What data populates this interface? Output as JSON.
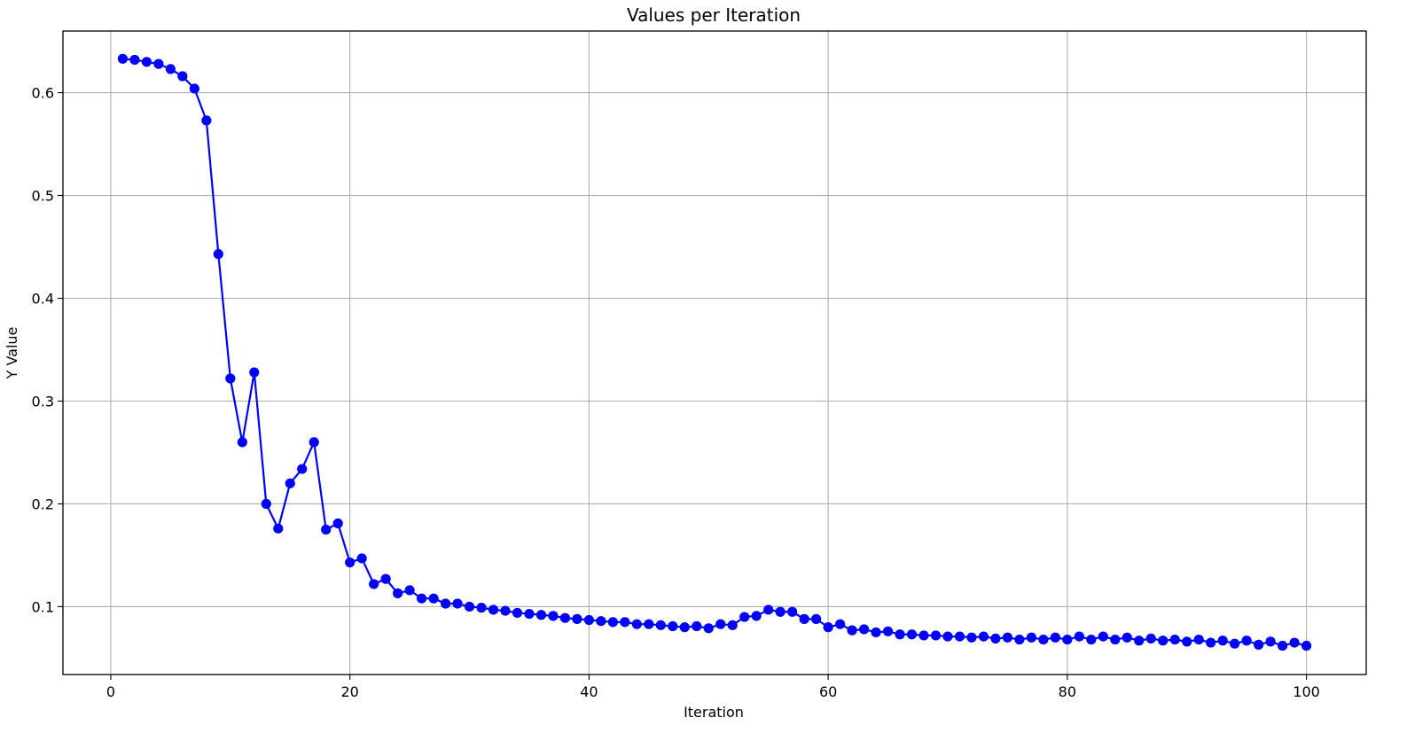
{
  "chart_data": {
    "type": "line",
    "title": "Values per Iteration",
    "xlabel": "Iteration",
    "ylabel": "Y Value",
    "xlim": [
      -4.0,
      105.0
    ],
    "ylim": [
      0.034,
      0.66
    ],
    "xticks": [
      0,
      20,
      40,
      60,
      80,
      100
    ],
    "yticks": [
      0.1,
      0.2,
      0.3,
      0.4,
      0.5,
      0.6
    ],
    "xtick_labels": [
      "0",
      "20",
      "40",
      "60",
      "80",
      "100"
    ],
    "ytick_labels": [
      "0.1",
      "0.2",
      "0.3",
      "0.4",
      "0.5",
      "0.6"
    ],
    "grid": true,
    "line_color": "#0000ff",
    "marker": "circle",
    "x": [
      1,
      2,
      3,
      4,
      5,
      6,
      7,
      8,
      9,
      10,
      11,
      12,
      13,
      14,
      15,
      16,
      17,
      18,
      19,
      20,
      21,
      22,
      23,
      24,
      25,
      26,
      27,
      28,
      29,
      30,
      31,
      32,
      33,
      34,
      35,
      36,
      37,
      38,
      39,
      40,
      41,
      42,
      43,
      44,
      45,
      46,
      47,
      48,
      49,
      50,
      51,
      52,
      53,
      54,
      55,
      56,
      57,
      58,
      59,
      60,
      61,
      62,
      63,
      64,
      65,
      66,
      67,
      68,
      69,
      70,
      71,
      72,
      73,
      74,
      75,
      76,
      77,
      78,
      79,
      80,
      81,
      82,
      83,
      84,
      85,
      86,
      87,
      88,
      89,
      90,
      91,
      92,
      93,
      94,
      95,
      96,
      97,
      98,
      99,
      100
    ],
    "y": [
      0.633,
      0.632,
      0.63,
      0.628,
      0.623,
      0.616,
      0.604,
      0.573,
      0.443,
      0.322,
      0.26,
      0.328,
      0.2,
      0.176,
      0.22,
      0.234,
      0.26,
      0.175,
      0.181,
      0.143,
      0.147,
      0.122,
      0.127,
      0.113,
      0.116,
      0.108,
      0.108,
      0.103,
      0.103,
      0.1,
      0.099,
      0.097,
      0.096,
      0.094,
      0.093,
      0.092,
      0.091,
      0.089,
      0.088,
      0.087,
      0.086,
      0.085,
      0.085,
      0.083,
      0.083,
      0.082,
      0.081,
      0.08,
      0.081,
      0.079,
      0.083,
      0.082,
      0.09,
      0.091,
      0.097,
      0.095,
      0.095,
      0.088,
      0.088,
      0.08,
      0.083,
      0.077,
      0.078,
      0.075,
      0.076,
      0.073,
      0.073,
      0.072,
      0.072,
      0.071,
      0.071,
      0.07,
      0.071,
      0.069,
      0.07,
      0.068,
      0.07,
      0.068,
      0.07,
      0.068,
      0.071,
      0.068,
      0.071,
      0.068,
      0.07,
      0.067,
      0.069,
      0.067,
      0.068,
      0.066,
      0.068,
      0.065,
      0.067,
      0.064,
      0.067,
      0.063,
      0.066,
      0.062,
      0.065,
      0.062
    ]
  }
}
